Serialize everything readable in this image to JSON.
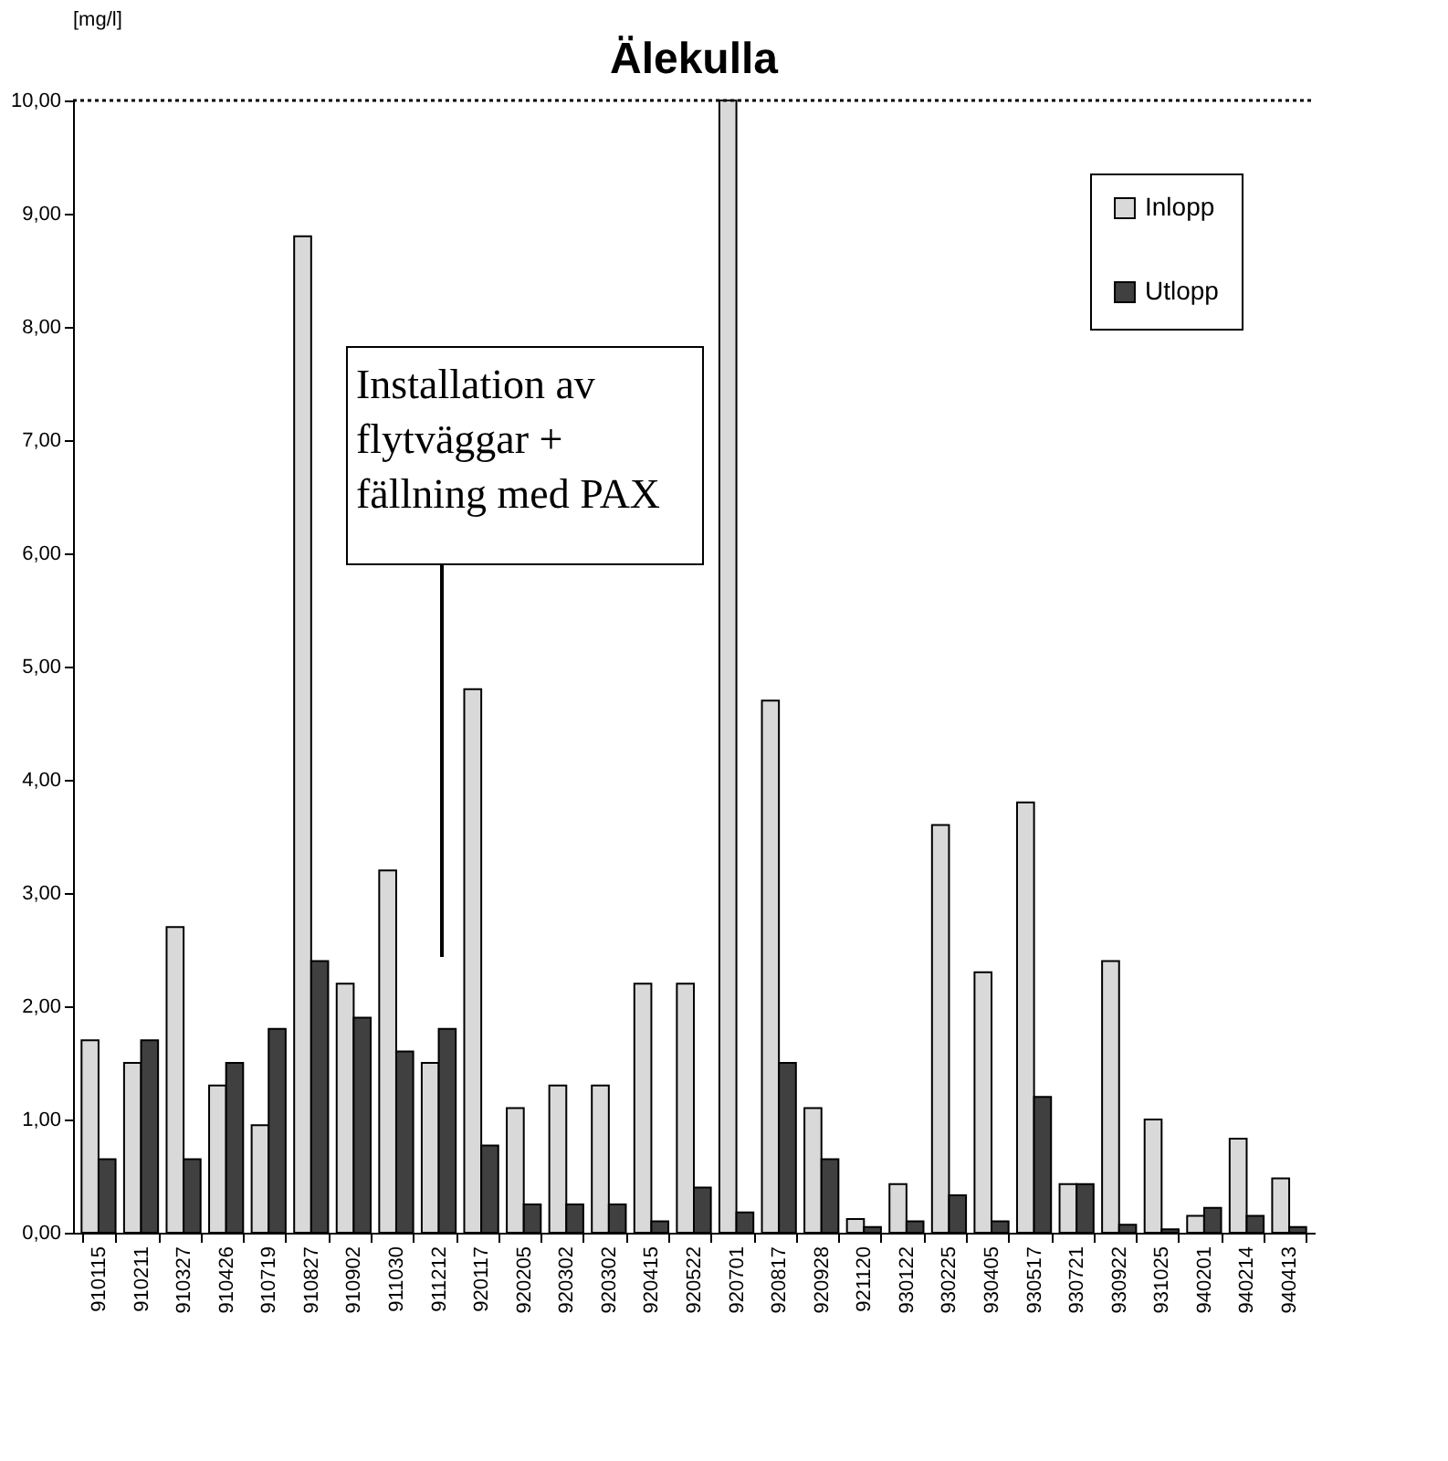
{
  "chart_data": {
    "type": "bar",
    "title": "Älekulla",
    "ylabel": "[mg/l]",
    "categories": [
      "910115",
      "910211",
      "910327",
      "910426",
      "910719",
      "910827",
      "910902",
      "911030",
      "911212",
      "920117",
      "920205",
      "920302",
      "920302",
      "920415",
      "920522",
      "920701",
      "920817",
      "920928",
      "921120",
      "930122",
      "930225",
      "930405",
      "930517",
      "930721",
      "930922",
      "931025",
      "940201",
      "940214",
      "940413"
    ],
    "series": [
      {
        "name": "Inlopp",
        "color": "#d9d9d9",
        "values": [
          1.7,
          1.5,
          2.7,
          1.3,
          0.95,
          8.8,
          2.2,
          3.2,
          1.5,
          4.8,
          1.1,
          1.3,
          1.3,
          2.2,
          2.2,
          10.0,
          4.7,
          1.1,
          0.12,
          0.43,
          3.6,
          2.3,
          3.8,
          0.43,
          2.4,
          1.0,
          0.15,
          0.83,
          0.48
        ]
      },
      {
        "name": "Utlopp",
        "color": "#404040",
        "values": [
          0.65,
          1.7,
          0.65,
          1.5,
          1.8,
          2.4,
          1.9,
          1.6,
          1.8,
          0.77,
          0.25,
          0.25,
          0.25,
          0.1,
          0.4,
          0.18,
          1.5,
          0.65,
          0.05,
          0.1,
          0.33,
          0.1,
          1.2,
          0.43,
          0.07,
          0.03,
          0.22,
          0.15,
          0.05
        ]
      }
    ],
    "ylim": [
      0,
      10
    ],
    "yticks": [
      {
        "value": 0,
        "label": "0,00"
      },
      {
        "value": 1,
        "label": "1,00"
      },
      {
        "value": 2,
        "label": "2,00"
      },
      {
        "value": 3,
        "label": "3,00"
      },
      {
        "value": 4,
        "label": "4,00"
      },
      {
        "value": 5,
        "label": "5,00"
      },
      {
        "value": 6,
        "label": "6,00"
      },
      {
        "value": 7,
        "label": "7,00"
      },
      {
        "value": 8,
        "label": "8,00"
      },
      {
        "value": 9,
        "label": "9,00"
      },
      {
        "value": 10,
        "label": "10,00"
      }
    ],
    "ref_lines": [
      {
        "axis": "y",
        "value": 10,
        "line_style": "dotted",
        "color": "#000000"
      }
    ],
    "annotations": [
      "Installation av\nflytväggar +\nfällning med PAX"
    ],
    "legend": "top right",
    "grid": false
  }
}
